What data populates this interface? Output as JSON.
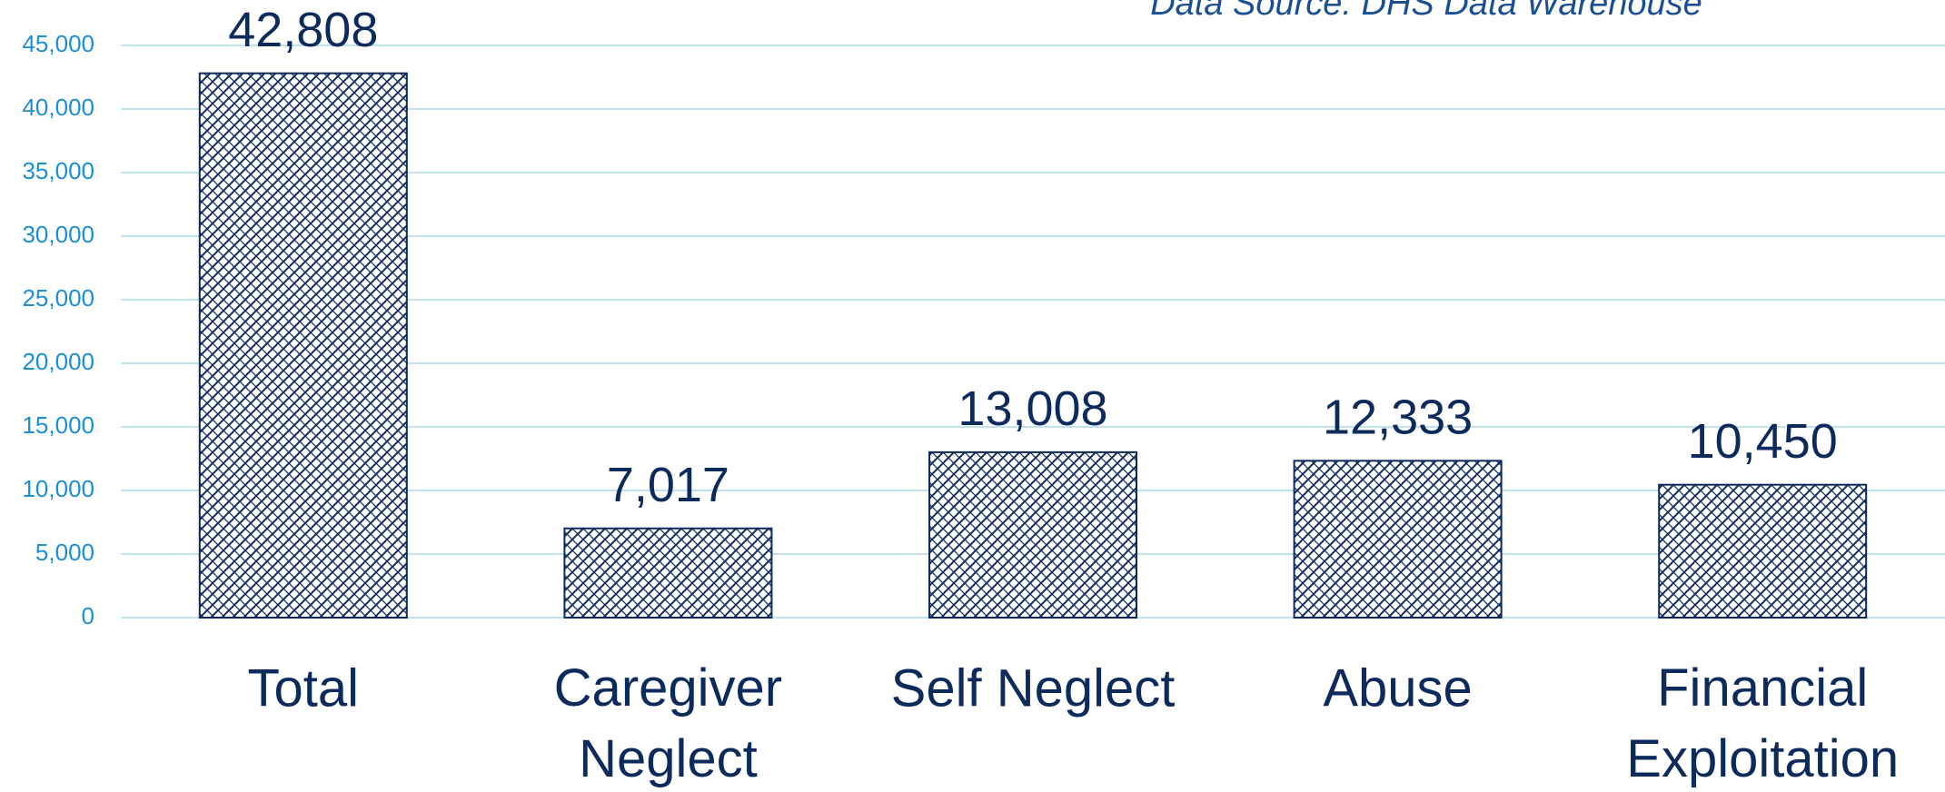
{
  "chart_data": {
    "type": "bar",
    "annotation": "Data Source: DHS Data Warehouse",
    "categories": [
      "Total",
      "Caregiver Neglect",
      "Self Neglect",
      "Abuse",
      "Financial Exploitation"
    ],
    "values": [
      42808,
      7017,
      13008,
      12333,
      10450
    ],
    "value_labels": [
      "42,808",
      "7,017",
      "13,008",
      "12,333",
      "10,450"
    ],
    "color": "#0d2a5c",
    "ylim": [
      0,
      45000
    ],
    "yticks": [
      0,
      {
        "value": 5000,
        "label": "5,000"
      },
      {
        "value": 10000,
        "label": "10,000"
      },
      {
        "value": 15000,
        "label": "15,000"
      },
      {
        "value": 20000,
        "label": "20,000"
      },
      {
        "value": 25000,
        "label": "25,000"
      },
      {
        "value": 30000,
        "label": "30,000"
      },
      {
        "value": 35000,
        "label": "35,000"
      },
      {
        "value": 40000,
        "label": "40,000"
      },
      {
        "value": 45000,
        "label": "45,000"
      }
    ],
    "grid": true
  }
}
